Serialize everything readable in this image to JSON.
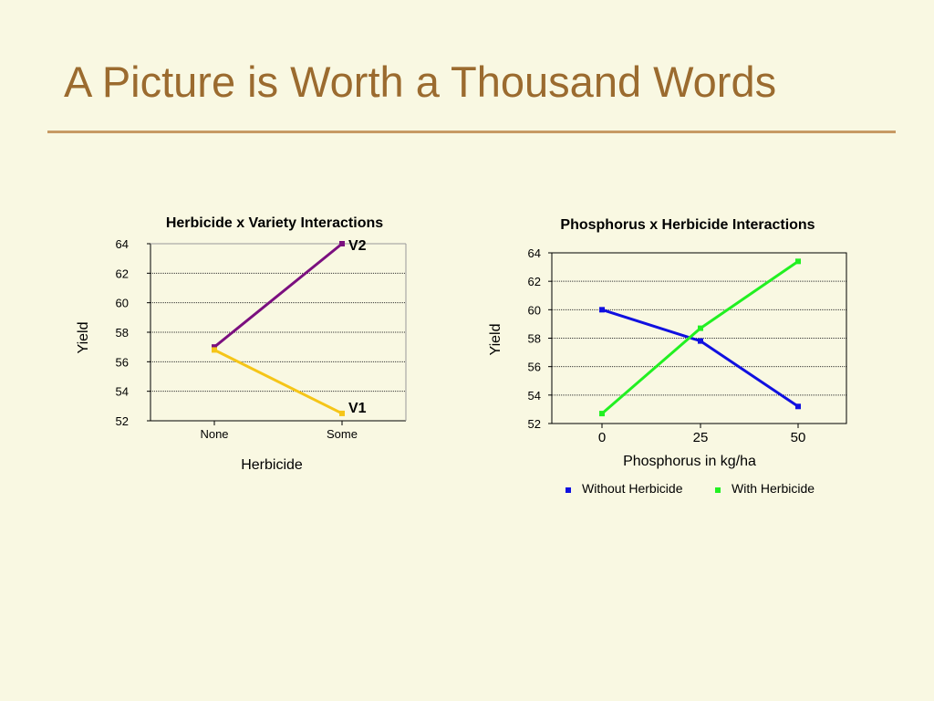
{
  "slide": {
    "title": "A Picture is Worth a Thousand Words",
    "accent_color": "#9b6b2f",
    "rule_color": "#c79a64",
    "background": "#f9f8e2"
  },
  "chart_data": [
    {
      "type": "line",
      "title": "Herbicide x Variety Interactions",
      "xlabel": "Herbicide",
      "ylabel": "Yield",
      "categories": [
        "None",
        "Some"
      ],
      "yticks": [
        "52",
        "54",
        "56",
        "58",
        "60",
        "62",
        "64"
      ],
      "ylim": [
        52,
        64
      ],
      "grid": true,
      "series": [
        {
          "name": "V2",
          "values": [
            57,
            64
          ],
          "color": "#7b0f7f"
        },
        {
          "name": "V1",
          "values": [
            56.8,
            52.5
          ],
          "color": "#f5c518"
        }
      ],
      "legend_placement": "inline-end-labels"
    },
    {
      "type": "line",
      "title": "Phosphorus x Herbicide Interactions",
      "xlabel": "Phosphorus in kg/ha",
      "ylabel": "Yield",
      "categories": [
        "0",
        "25",
        "50"
      ],
      "yticks": [
        "52",
        "54",
        "56",
        "58",
        "60",
        "62",
        "64"
      ],
      "ylim": [
        52,
        64
      ],
      "grid": true,
      "series": [
        {
          "name": "Without Herbicide",
          "values": [
            60,
            57.8,
            53.2
          ],
          "color": "#1010e0"
        },
        {
          "name": "With Herbicide",
          "values": [
            52.7,
            58.7,
            63.4
          ],
          "color": "#22f022"
        }
      ],
      "legend_placement": "bottom"
    }
  ]
}
